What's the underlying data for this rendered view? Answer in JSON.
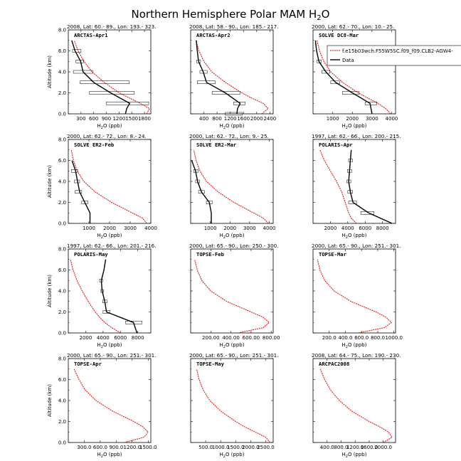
{
  "figure": {
    "title_main": "Northern Hemisphere Polar MAM H",
    "title_sub": "2",
    "title_tail": "O",
    "ylabel": "Altitude (km)",
    "xlabel_main": "H",
    "xlabel_sub": "2",
    "xlabel_tail": "O (ppb)",
    "model_color": "#e00000",
    "data_color": "#000000"
  },
  "legend": {
    "model_label": "f.e15b03wch.F55W5SC.f09_f09.CLB2-AGW4-",
    "data_label": "Data"
  },
  "chart_data": [
    {
      "type": "line",
      "title": "ARCTAS-Apr1",
      "header": "2008, Lat:  60.- 89., Lon: 193.- 323.",
      "xlim": [
        0,
        1950
      ],
      "ylim": [
        0,
        8
      ],
      "xticks": [
        300,
        600,
        900,
        1200,
        1500,
        1800
      ],
      "xtick_labels": [
        "300",
        "600",
        "900",
        "1200",
        "1500",
        "1800"
      ],
      "yticks": [
        0,
        2,
        4,
        6,
        8
      ],
      "ytick_labels": [
        "0.0",
        "2.0",
        "4.0",
        "6.0",
        "8.0"
      ],
      "model": {
        "y": [
          0,
          0.5,
          1,
          1.5,
          2,
          3,
          4,
          5,
          6,
          7
        ],
        "x": [
          1850,
          1920,
          1700,
          1450,
          1200,
          850,
          560,
          370,
          230,
          140
        ]
      },
      "data": {
        "y": [
          0,
          0.5,
          1,
          2,
          3,
          4,
          5,
          6,
          7
        ],
        "x": [
          1350,
          1380,
          1450,
          1000,
          600,
          350,
          290,
          160,
          80
        ],
        "xerr": [
          [
            0,
            0
          ],
          [
            0,
            0
          ],
          [
            900,
            1900
          ],
          [
            500,
            1560
          ],
          [
            280,
            1440
          ],
          [
            120,
            580
          ],
          [
            180,
            360
          ],
          [
            100,
            300
          ],
          [
            0,
            0
          ]
        ]
      }
    },
    {
      "type": "line",
      "title": "ARCTAS-Apr2",
      "header": "2008, Lat:  58.- 90., Lon: 185.- 217.",
      "xlim": [
        0,
        2500
      ],
      "ylim": [
        0,
        8
      ],
      "xticks": [
        400,
        800,
        1200,
        1600,
        2000,
        2400
      ],
      "xtick_labels": [
        "400",
        "800",
        "1200",
        "1600",
        "2000",
        "2400"
      ],
      "yticks": [
        0,
        2,
        4,
        6,
        8
      ],
      "ytick_labels": [
        "0.0",
        "2.0",
        "4.0",
        "6.0",
        "8.0"
      ],
      "model": {
        "y": [
          0,
          0.5,
          1,
          1.5,
          2,
          3,
          4,
          5,
          6,
          7
        ],
        "x": [
          2150,
          2350,
          2200,
          1850,
          1550,
          1050,
          640,
          400,
          250,
          160
        ]
      },
      "data": {
        "y": [
          0,
          0.5,
          1,
          2,
          3,
          4,
          5,
          6,
          7
        ],
        "x": [
          1400,
          1420,
          1500,
          1050,
          480,
          380,
          240,
          200,
          170
        ],
        "xerr": [
          [
            1050,
            1560
          ],
          [
            0,
            0
          ],
          [
            1300,
            1650
          ],
          [
            650,
            1500
          ],
          [
            200,
            750
          ],
          [
            280,
            500
          ],
          [
            180,
            300
          ],
          [
            0,
            0
          ],
          [
            0,
            0
          ]
        ]
      }
    },
    {
      "type": "line",
      "title": "SOLVE DC8-Mar",
      "header": "2000, Lat:  62.- 70., Lon:  10.-  25.",
      "xlim": [
        0,
        4200
      ],
      "ylim": [
        0,
        8
      ],
      "xticks": [
        1000,
        2000,
        3000,
        4000
      ],
      "xtick_labels": [
        "1000",
        "2000",
        "3000",
        "4000"
      ],
      "yticks": [
        0,
        2,
        4,
        6,
        8
      ],
      "ytick_labels": [
        "0.0",
        "2.0",
        "4.0",
        "6.0",
        "8.0"
      ],
      "model": {
        "y": [
          0,
          0.5,
          1,
          1.5,
          2,
          3,
          4,
          5,
          6,
          7
        ],
        "x": [
          3950,
          3700,
          3300,
          2800,
          2300,
          1500,
          900,
          550,
          330,
          200
        ]
      },
      "data": {
        "y": [
          0,
          1,
          2,
          3,
          4,
          5,
          6,
          7
        ],
        "x": [
          3000,
          2900,
          2000,
          1150,
          650,
          300,
          180,
          120
        ],
        "xerr": [
          [
            0,
            0
          ],
          [
            2650,
            3250
          ],
          [
            1500,
            2350
          ],
          [
            900,
            1350
          ],
          [
            450,
            850
          ],
          [
            200,
            420
          ],
          [
            0,
            0
          ],
          [
            0,
            0
          ]
        ]
      }
    },
    {
      "type": "line",
      "title": "SOLVE ER2-Feb",
      "header": "2000, Lat:  62.- 72., Lon:   8.-  24.",
      "xlim": [
        0,
        4000
      ],
      "ylim": [
        0,
        8
      ],
      "xticks": [
        1000,
        2000,
        3000,
        4000
      ],
      "xtick_labels": [
        "1000",
        "2000",
        "3000",
        "4000"
      ],
      "yticks": [
        0,
        2,
        4,
        6,
        8
      ],
      "ytick_labels": [
        "0.0",
        "2.0",
        "4.0",
        "6.0",
        "8.0"
      ],
      "model": {
        "y": [
          0,
          0.5,
          1,
          1.5,
          2,
          3,
          4,
          5,
          6,
          7
        ],
        "x": [
          3800,
          3600,
          3100,
          2600,
          2100,
          1300,
          750,
          430,
          250,
          150
        ]
      },
      "data": {
        "y": [
          0,
          1,
          2,
          3,
          4,
          5,
          6
        ],
        "x": [
          1050,
          1050,
          800,
          550,
          450,
          350,
          180
        ],
        "xerr": [
          [
            0,
            0
          ],
          [
            0,
            0
          ],
          [
            650,
            950
          ],
          [
            330,
            650
          ],
          [
            300,
            550
          ],
          [
            150,
            450
          ],
          [
            0,
            0
          ]
        ]
      }
    },
    {
      "type": "line",
      "title": "SOLVE ER2-Mar",
      "header": "2000, Lat:  62.- 72., Lon:   9.-  25.",
      "xlim": [
        0,
        4200
      ],
      "ylim": [
        0,
        8
      ],
      "xticks": [
        1000,
        2000,
        3000,
        4000
      ],
      "xtick_labels": [
        "1000",
        "2000",
        "3000",
        "4000"
      ],
      "yticks": [
        0,
        2,
        4,
        6,
        8
      ],
      "ytick_labels": [
        "0.0",
        "2.0",
        "4.0",
        "6.0",
        "8.0"
      ],
      "model": {
        "y": [
          0,
          0.5,
          1,
          1.5,
          2,
          3,
          4,
          5,
          6,
          7
        ],
        "x": [
          3950,
          3700,
          3200,
          2700,
          2200,
          1400,
          800,
          470,
          280,
          160
        ]
      },
      "data": {
        "y": [
          0,
          1,
          2,
          3,
          4,
          5,
          6
        ],
        "x": [
          1050,
          1050,
          950,
          550,
          350,
          250,
          50
        ],
        "xerr": [
          [
            0,
            0
          ],
          [
            0,
            0
          ],
          [
            800,
            1100
          ],
          [
            400,
            700
          ],
          [
            250,
            450
          ],
          [
            150,
            380
          ],
          [
            0,
            0
          ]
        ]
      }
    },
    {
      "type": "line",
      "title": "POLARIS-Apr",
      "header": "1997, Lat:  62.- 66., Lon: 200.- 215.",
      "xlim": [
        0,
        9500
      ],
      "ylim": [
        0,
        8
      ],
      "xticks": [
        2000,
        4000,
        6000,
        8000
      ],
      "xtick_labels": [
        "2000",
        "4000",
        "6000",
        "8000"
      ],
      "yticks": [
        0,
        2,
        4,
        6,
        8
      ],
      "ytick_labels": [
        "0.0",
        "2.0",
        "4.0",
        "6.0",
        "8.0"
      ],
      "model": {
        "y": [
          0,
          0.5,
          1,
          1.5,
          2,
          3,
          4,
          5,
          6,
          7
        ],
        "x": [
          5000,
          4400,
          4100,
          3900,
          3700,
          3300,
          2700,
          2000,
          1300,
          800
        ]
      },
      "data": {
        "y": [
          0,
          1,
          2,
          3,
          4,
          5,
          6,
          7
        ],
        "x": [
          9100,
          6400,
          4600,
          4300,
          4100,
          4200,
          4300,
          4400
        ],
        "xerr": [
          [
            0,
            0
          ],
          [
            5500,
            7000
          ],
          [
            4100,
            5000
          ],
          [
            4000,
            4550
          ],
          [
            3900,
            4350
          ],
          [
            3950,
            4450
          ],
          [
            4100,
            4550
          ],
          [
            0,
            0
          ]
        ]
      }
    },
    {
      "type": "line",
      "title": "POLARIS-May",
      "header": "1997, Lat:  62.- 66., Lon: 201.- 216.",
      "xlim": [
        0,
        9500
      ],
      "ylim": [
        0,
        8
      ],
      "xticks": [
        2000,
        4000,
        6000,
        8000
      ],
      "xtick_labels": [
        "2000",
        "4000",
        "6000",
        "8000"
      ],
      "yticks": [
        0,
        2,
        4,
        6,
        8
      ],
      "ytick_labels": [
        "0.0",
        "2.0",
        "4.0",
        "6.0",
        "8.0"
      ],
      "model": {
        "y": [
          0,
          0.5,
          1,
          1.5,
          2,
          3,
          4,
          5,
          6,
          7
        ],
        "x": [
          6000,
          5000,
          4200,
          3600,
          3100,
          2300,
          1600,
          1000,
          550,
          250
        ]
      },
      "data": {
        "y": [
          0,
          1,
          2,
          3,
          4,
          5,
          6,
          7
        ],
        "x": [
          7900,
          7500,
          4400,
          4200,
          3900,
          3800,
          4100,
          4300
        ],
        "xerr": [
          [
            0,
            0
          ],
          [
            6600,
            8500
          ],
          [
            4000,
            4800
          ],
          [
            3950,
            4450
          ],
          [
            3750,
            4050
          ],
          [
            3600,
            3950
          ],
          [
            0,
            0
          ],
          [
            0,
            0
          ]
        ]
      }
    },
    {
      "type": "line",
      "title": "TOPSE-Feb",
      "header": "2000, Lat:  65.- 90., Lon: 250.- 300.",
      "xlim": [
        0,
        820
      ],
      "ylim": [
        0,
        8
      ],
      "xticks": [
        200,
        400,
        600,
        800
      ],
      "xtick_labels": [
        "200.00",
        "400.00",
        "600.00",
        "800.00"
      ],
      "yticks": [
        0,
        2,
        4,
        6,
        8
      ],
      "ytick_labels": [
        "0.0",
        "2.0",
        "4.0",
        "6.0",
        "8.0"
      ],
      "model": {
        "y": [
          0,
          0.5,
          1,
          1.5,
          2,
          3,
          4,
          5,
          6,
          7
        ],
        "x": [
          470,
          720,
          780,
          720,
          600,
          360,
          200,
          110,
          65,
          40
        ]
      }
    },
    {
      "type": "line",
      "title": "TOPSE-Mar",
      "header": "2000, Lat:  65.- 90., Lon: 251.- 301.",
      "xlim": [
        0,
        1020
      ],
      "ylim": [
        0,
        8
      ],
      "xticks": [
        200,
        400,
        600,
        800,
        1000
      ],
      "xtick_labels": [
        "200.0",
        "400.0",
        "600.0",
        "800.0",
        "1000.0"
      ],
      "yticks": [
        0,
        2,
        4,
        6,
        8
      ],
      "ytick_labels": [
        "0.0",
        "2.0",
        "4.0",
        "6.0",
        "8.0"
      ],
      "model": {
        "y": [
          0,
          0.5,
          1,
          1.5,
          2,
          3,
          4,
          5,
          6,
          7
        ],
        "x": [
          560,
          880,
          970,
          900,
          780,
          470,
          260,
          145,
          85,
          55
        ]
      }
    },
    {
      "type": "line",
      "title": "TOPSE-Apr",
      "header": "2000, Lat:  65.- 90., Lon: 251.- 301.",
      "xlim": [
        0,
        1550
      ],
      "ylim": [
        0,
        8
      ],
      "xticks": [
        300,
        600,
        900,
        1200,
        1500
      ],
      "xtick_labels": [
        "300.0",
        "600.0",
        "900.0",
        "1200.0",
        "1500.0"
      ],
      "yticks": [
        0,
        2,
        4,
        6,
        8
      ],
      "ytick_labels": [
        "0.0",
        "2.0",
        "4.0",
        "6.0",
        "8.0"
      ],
      "model": {
        "y": [
          0,
          0.5,
          1,
          1.5,
          2,
          3,
          4,
          5,
          6,
          7
        ],
        "x": [
          1050,
          1420,
          1500,
          1400,
          1230,
          830,
          520,
          320,
          200,
          110
        ]
      }
    },
    {
      "type": "line",
      "title": "TOPSE-May",
      "header": "2000, Lat:  65.- 90., Lon: 251.- 301.",
      "xlim": [
        0,
        2750
      ],
      "ylim": [
        0,
        8
      ],
      "xticks": [
        500,
        1000,
        1500,
        2000,
        2500
      ],
      "xtick_labels": [
        "500.0",
        "1000.0",
        "1500.0",
        "2000.0",
        "2500.0"
      ],
      "yticks": [
        0,
        2,
        4,
        6,
        8
      ],
      "ytick_labels": [
        "0.0",
        "2.0",
        "4.0",
        "6.0",
        "8.0"
      ],
      "model": {
        "y": [
          0,
          0.5,
          1,
          1.5,
          2,
          3,
          4,
          5,
          6,
          7
        ],
        "x": [
          2650,
          2500,
          2150,
          1800,
          1500,
          1000,
          640,
          420,
          280,
          200
        ]
      }
    },
    {
      "type": "line",
      "title": "ARCPAC2008",
      "header": "2008, Lat:  64.- 75., Lon: 190.- 230.",
      "xlim": [
        0,
        2350
      ],
      "ylim": [
        0,
        8
      ],
      "xticks": [
        400,
        800,
        1200,
        1600,
        2000
      ],
      "xtick_labels": [
        "400.0",
        "800.0",
        "1200.0",
        "1600.0",
        "2000.0"
      ],
      "yticks": [
        0,
        2,
        4,
        6,
        8
      ],
      "ytick_labels": [
        "0.0",
        "2.0",
        "4.0",
        "6.0",
        "8.0"
      ],
      "model": {
        "y": [
          0,
          0.5,
          1,
          1.5,
          2,
          3,
          4,
          5,
          6,
          7
        ],
        "x": [
          2000,
          2250,
          2150,
          1900,
          1600,
          1100,
          750,
          500,
          330,
          210
        ]
      }
    }
  ]
}
